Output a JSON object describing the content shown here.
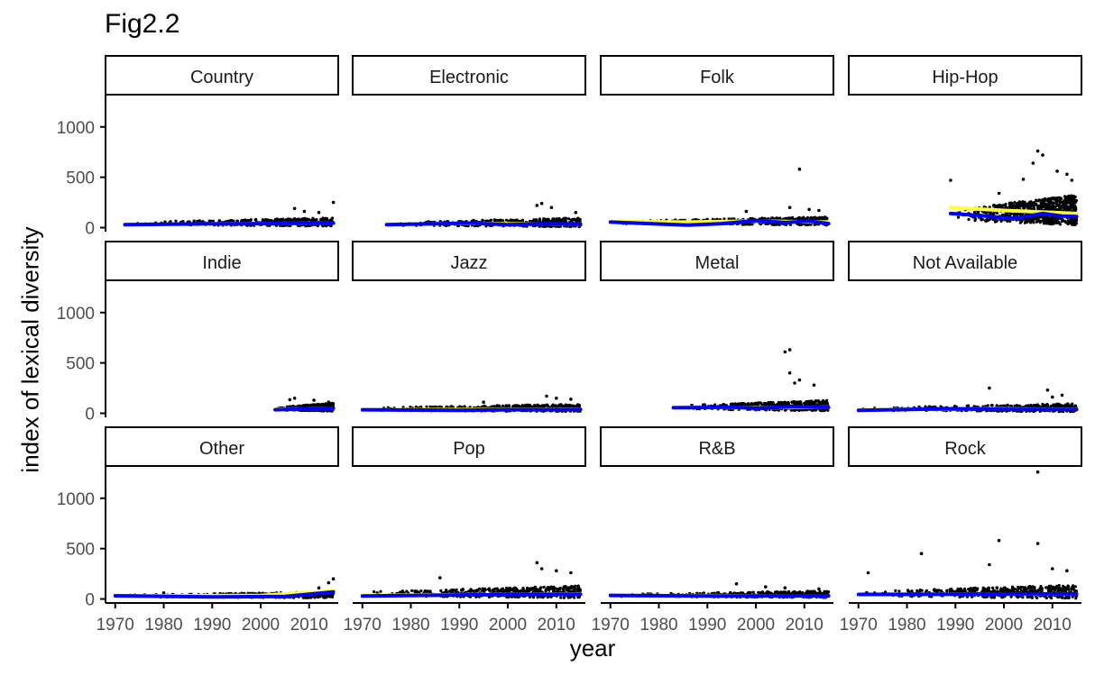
{
  "chart_data": {
    "type": "scatter",
    "title": "Fig2.2",
    "xlabel": "year",
    "ylabel": "index of lexical diversity",
    "xlim": [
      1968,
      2016
    ],
    "ylim": [
      -40,
      1320
    ],
    "x_ticks": [
      1970,
      1980,
      1990,
      2000,
      2010
    ],
    "x_tick_labels": [
      "1970",
      "1980",
      "1990",
      "2000",
      "2010"
    ],
    "y_ticks": [
      0,
      500,
      1000
    ],
    "y_tick_labels": [
      "0",
      "500",
      "1000"
    ],
    "facets": [
      {
        "label": "Country",
        "start": 1972,
        "end": 2015,
        "base": 35,
        "spread": 55,
        "outliers": [
          [
            2007,
            190
          ],
          [
            2009,
            160
          ],
          [
            2015,
            250
          ],
          [
            2012,
            150
          ]
        ],
        "trend": [
          [
            1972,
            30
          ],
          [
            1990,
            38
          ],
          [
            2000,
            40
          ],
          [
            2015,
            45
          ]
        ],
        "loess": [
          [
            1972,
            30
          ],
          [
            1990,
            38
          ],
          [
            2000,
            40
          ],
          [
            2015,
            45
          ]
        ]
      },
      {
        "label": "Electronic",
        "start": 1975,
        "end": 2015,
        "base": 30,
        "spread": 60,
        "outliers": [
          [
            2007,
            240
          ],
          [
            2006,
            220
          ],
          [
            2009,
            200
          ],
          [
            2014,
            150
          ]
        ],
        "trend": [
          [
            1975,
            30
          ],
          [
            1990,
            42
          ],
          [
            1998,
            38
          ],
          [
            2015,
            35
          ]
        ],
        "loess": [
          [
            1975,
            30
          ],
          [
            1985,
            38
          ],
          [
            1992,
            45
          ],
          [
            2000,
            30
          ],
          [
            2008,
            38
          ],
          [
            2015,
            35
          ]
        ]
      },
      {
        "label": "Folk",
        "start": 1970,
        "end": 2015,
        "base": 45,
        "spread": 55,
        "outliers": [
          [
            2009,
            580
          ],
          [
            2007,
            200
          ],
          [
            2011,
            180
          ],
          [
            2013,
            170
          ],
          [
            1998,
            160
          ]
        ],
        "trend": [
          [
            1970,
            60
          ],
          [
            1985,
            55
          ],
          [
            2000,
            65
          ],
          [
            2015,
            55
          ]
        ],
        "loess": [
          [
            1970,
            55
          ],
          [
            1978,
            40
          ],
          [
            1986,
            25
          ],
          [
            1993,
            40
          ],
          [
            2000,
            70
          ],
          [
            2006,
            50
          ],
          [
            2011,
            65
          ],
          [
            2015,
            40
          ]
        ]
      },
      {
        "label": "Hip-Hop",
        "start": 1989,
        "end": 2015,
        "base": 100,
        "spread": 200,
        "outliers": [
          [
            1989,
            470
          ],
          [
            2004,
            480
          ],
          [
            2007,
            760
          ],
          [
            2008,
            720
          ],
          [
            2006,
            640
          ],
          [
            2011,
            560
          ],
          [
            2013,
            530
          ],
          [
            2014,
            470
          ],
          [
            1999,
            340
          ]
        ],
        "trend": [
          [
            1989,
            200
          ],
          [
            2000,
            170
          ],
          [
            2015,
            140
          ]
        ],
        "loess": [
          [
            1989,
            140
          ],
          [
            1995,
            120
          ],
          [
            2002,
            90
          ],
          [
            2008,
            140
          ],
          [
            2012,
            115
          ],
          [
            2015,
            110
          ]
        ]
      },
      {
        "label": "Indie",
        "start": 2003,
        "end": 2015,
        "base": 40,
        "spread": 55,
        "outliers": [
          [
            2007,
            150
          ],
          [
            2006,
            135
          ],
          [
            2011,
            130
          ],
          [
            2014,
            110
          ]
        ],
        "trend": [
          [
            2003,
            40
          ],
          [
            2015,
            50
          ]
        ],
        "loess": [
          [
            2003,
            35
          ],
          [
            2009,
            45
          ],
          [
            2015,
            50
          ]
        ]
      },
      {
        "label": "Jazz",
        "start": 1970,
        "end": 2015,
        "base": 35,
        "spread": 50,
        "outliers": [
          [
            2008,
            170
          ],
          [
            2010,
            150
          ],
          [
            2013,
            140
          ],
          [
            1995,
            110
          ]
        ],
        "trend": [
          [
            1970,
            35
          ],
          [
            2015,
            40
          ]
        ],
        "loess": [
          [
            1970,
            35
          ],
          [
            1990,
            30
          ],
          [
            2000,
            35
          ],
          [
            2015,
            38
          ]
        ]
      },
      {
        "label": "Metal",
        "start": 1983,
        "end": 2015,
        "base": 50,
        "spread": 70,
        "outliers": [
          [
            2007,
            630
          ],
          [
            2006,
            610
          ],
          [
            2007,
            400
          ],
          [
            2009,
            330
          ],
          [
            2008,
            300
          ],
          [
            2012,
            280
          ]
        ],
        "trend": [
          [
            1983,
            60
          ],
          [
            2000,
            55
          ],
          [
            2015,
            60
          ]
        ],
        "loess": [
          [
            1983,
            55
          ],
          [
            1995,
            60
          ],
          [
            2000,
            50
          ],
          [
            2008,
            65
          ],
          [
            2015,
            58
          ]
        ]
      },
      {
        "label": "Not Available",
        "start": 1970,
        "end": 2015,
        "base": 35,
        "spread": 55,
        "outliers": [
          [
            1997,
            250
          ],
          [
            2009,
            230
          ],
          [
            2012,
            180
          ],
          [
            2010,
            160
          ]
        ],
        "trend": [
          [
            1970,
            35
          ],
          [
            1995,
            45
          ],
          [
            2015,
            40
          ]
        ],
        "loess": [
          [
            1970,
            30
          ],
          [
            1990,
            45
          ],
          [
            2000,
            40
          ],
          [
            2015,
            38
          ]
        ]
      },
      {
        "label": "Other",
        "start": 1970,
        "end": 2015,
        "base": 25,
        "spread": 40,
        "outliers": [
          [
            1980,
            60
          ],
          [
            2012,
            110
          ],
          [
            2014,
            160
          ],
          [
            2015,
            200
          ]
        ],
        "trend": [
          [
            1970,
            30
          ],
          [
            2000,
            35
          ],
          [
            2015,
            80
          ]
        ],
        "loess": [
          [
            1970,
            32
          ],
          [
            1990,
            20
          ],
          [
            2005,
            25
          ],
          [
            2015,
            70
          ]
        ]
      },
      {
        "label": "Pop",
        "start": 1970,
        "end": 2015,
        "base": 40,
        "spread": 80,
        "outliers": [
          [
            1986,
            210
          ],
          [
            2006,
            360
          ],
          [
            2007,
            300
          ],
          [
            2010,
            280
          ],
          [
            2013,
            260
          ]
        ],
        "trend": [
          [
            1970,
            35
          ],
          [
            2015,
            50
          ]
        ],
        "loess": [
          [
            1970,
            30
          ],
          [
            1990,
            40
          ],
          [
            2005,
            45
          ],
          [
            2015,
            48
          ]
        ]
      },
      {
        "label": "R&B",
        "start": 1970,
        "end": 2015,
        "base": 30,
        "spread": 45,
        "outliers": [
          [
            1996,
            150
          ],
          [
            2002,
            120
          ],
          [
            2006,
            110
          ],
          [
            2013,
            100
          ]
        ],
        "trend": [
          [
            1970,
            35
          ],
          [
            2015,
            30
          ]
        ],
        "loess": [
          [
            1970,
            35
          ],
          [
            1990,
            30
          ],
          [
            2015,
            32
          ]
        ]
      },
      {
        "label": "Rock",
        "start": 1970,
        "end": 2015,
        "base": 40,
        "spread": 90,
        "outliers": [
          [
            2007,
            1260
          ],
          [
            1999,
            580
          ],
          [
            2007,
            550
          ],
          [
            1983,
            450
          ],
          [
            1997,
            340
          ],
          [
            2010,
            300
          ],
          [
            2013,
            280
          ],
          [
            1972,
            260
          ]
        ],
        "trend": [
          [
            1970,
            45
          ],
          [
            2015,
            50
          ]
        ],
        "loess": [
          [
            1970,
            45
          ],
          [
            1990,
            48
          ],
          [
            2005,
            50
          ],
          [
            2015,
            50
          ]
        ]
      }
    ],
    "colors": {
      "points": "#000000",
      "trend": "#ffff33",
      "loess": "#0000ff",
      "strip_fill": "#ffffff",
      "strip_border": "#000000",
      "axis": "#000000",
      "tick_text": "#4d4d4d"
    }
  }
}
